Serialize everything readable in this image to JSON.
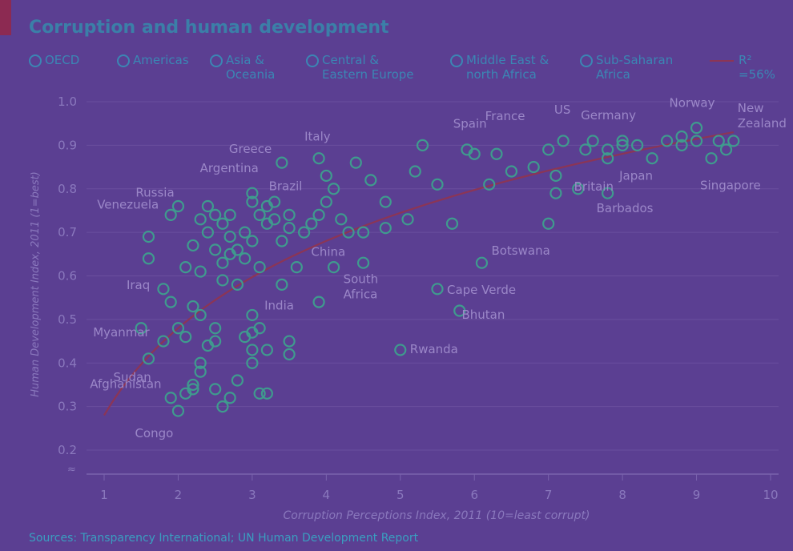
{
  "chart_data": {
    "type": "scatter",
    "title": "Corruption and human development",
    "xlabel": "Corruption Perceptions Index, 2011 (10=least corrupt)",
    "ylabel": "Human Development Index, 2011 (1=best)",
    "xlim": [
      1,
      10
    ],
    "ylim": [
      0.2,
      1.0
    ],
    "x_ticks": [
      "1",
      "2",
      "3",
      "4",
      "5",
      "6",
      "7",
      "8",
      "9",
      "10"
    ],
    "y_ticks": [
      "0.2",
      "0.3",
      "0.4",
      "0.5",
      "0.6",
      "0.7",
      "0.8",
      "0.9",
      "1.0"
    ],
    "grid": "horizontal",
    "legend_position": "top",
    "legend": [
      {
        "label": "OECD",
        "color": "#3b86b4"
      },
      {
        "label": "Americas",
        "color": "#3b86b4"
      },
      {
        "label": "Asia &\nOceania",
        "color": "#3b86b4"
      },
      {
        "label": "Central &\nEastern Europe",
        "color": "#3b86b4"
      },
      {
        "label": "Middle East &\nnorth Africa",
        "color": "#3b86b4"
      },
      {
        "label": "Sub-Saharan\nAfrica",
        "color": "#3b86b4"
      },
      {
        "label": "R² =56%",
        "color": "#8c3555"
      }
    ],
    "trend_line": {
      "label": "R² =56%",
      "from": [
        1.0,
        0.28
      ],
      "to": [
        9.5,
        0.93
      ],
      "color": "#8c3555"
    },
    "points": [
      {
        "x": 1.5,
        "y": 0.48
      },
      {
        "x": 1.6,
        "y": 0.41
      },
      {
        "x": 1.6,
        "y": 0.69
      },
      {
        "x": 1.6,
        "y": 0.64
      },
      {
        "x": 1.8,
        "y": 0.45
      },
      {
        "x": 1.8,
        "y": 0.57
      },
      {
        "x": 1.9,
        "y": 0.74
      },
      {
        "x": 1.9,
        "y": 0.54
      },
      {
        "x": 1.9,
        "y": 0.32
      },
      {
        "x": 2.0,
        "y": 0.29
      },
      {
        "x": 2.0,
        "y": 0.48
      },
      {
        "x": 2.0,
        "y": 0.76
      },
      {
        "x": 2.1,
        "y": 0.33
      },
      {
        "x": 2.1,
        "y": 0.46
      },
      {
        "x": 2.1,
        "y": 0.62
      },
      {
        "x": 2.2,
        "y": 0.34
      },
      {
        "x": 2.2,
        "y": 0.53
      },
      {
        "x": 2.2,
        "y": 0.67
      },
      {
        "x": 2.2,
        "y": 0.35
      },
      {
        "x": 2.3,
        "y": 0.4
      },
      {
        "x": 2.3,
        "y": 0.38
      },
      {
        "x": 2.3,
        "y": 0.51
      },
      {
        "x": 2.3,
        "y": 0.61
      },
      {
        "x": 2.3,
        "y": 0.73
      },
      {
        "x": 2.4,
        "y": 0.44
      },
      {
        "x": 2.4,
        "y": 0.7
      },
      {
        "x": 2.4,
        "y": 0.76
      },
      {
        "x": 2.5,
        "y": 0.34
      },
      {
        "x": 2.5,
        "y": 0.45
      },
      {
        "x": 2.5,
        "y": 0.48
      },
      {
        "x": 2.5,
        "y": 0.66
      },
      {
        "x": 2.5,
        "y": 0.74
      },
      {
        "x": 2.6,
        "y": 0.3
      },
      {
        "x": 2.6,
        "y": 0.59
      },
      {
        "x": 2.6,
        "y": 0.63
      },
      {
        "x": 2.6,
        "y": 0.72
      },
      {
        "x": 2.7,
        "y": 0.65
      },
      {
        "x": 2.7,
        "y": 0.69
      },
      {
        "x": 2.7,
        "y": 0.74
      },
      {
        "x": 2.7,
        "y": 0.32
      },
      {
        "x": 2.8,
        "y": 0.36
      },
      {
        "x": 2.8,
        "y": 0.58
      },
      {
        "x": 2.8,
        "y": 0.66
      },
      {
        "x": 2.9,
        "y": 0.46
      },
      {
        "x": 2.9,
        "y": 0.64
      },
      {
        "x": 2.9,
        "y": 0.7
      },
      {
        "x": 3.0,
        "y": 0.4
      },
      {
        "x": 3.0,
        "y": 0.43
      },
      {
        "x": 3.0,
        "y": 0.47
      },
      {
        "x": 3.0,
        "y": 0.51
      },
      {
        "x": 3.0,
        "y": 0.68
      },
      {
        "x": 3.0,
        "y": 0.77
      },
      {
        "x": 3.0,
        "y": 0.79
      },
      {
        "x": 3.1,
        "y": 0.33
      },
      {
        "x": 3.1,
        "y": 0.48
      },
      {
        "x": 3.1,
        "y": 0.62
      },
      {
        "x": 3.1,
        "y": 0.74
      },
      {
        "x": 3.2,
        "y": 0.33
      },
      {
        "x": 3.2,
        "y": 0.43
      },
      {
        "x": 3.2,
        "y": 0.72
      },
      {
        "x": 3.2,
        "y": 0.76
      },
      {
        "x": 3.3,
        "y": 0.73
      },
      {
        "x": 3.3,
        "y": 0.77
      },
      {
        "x": 3.4,
        "y": 0.58
      },
      {
        "x": 3.4,
        "y": 0.68
      },
      {
        "x": 3.4,
        "y": 0.86
      },
      {
        "x": 3.5,
        "y": 0.42
      },
      {
        "x": 3.5,
        "y": 0.45
      },
      {
        "x": 3.5,
        "y": 0.71
      },
      {
        "x": 3.5,
        "y": 0.74
      },
      {
        "x": 3.6,
        "y": 0.62
      },
      {
        "x": 3.7,
        "y": 0.7
      },
      {
        "x": 3.8,
        "y": 0.72
      },
      {
        "x": 3.9,
        "y": 0.54
      },
      {
        "x": 3.9,
        "y": 0.74
      },
      {
        "x": 3.9,
        "y": 0.87
      },
      {
        "x": 4.0,
        "y": 0.77
      },
      {
        "x": 4.0,
        "y": 0.83
      },
      {
        "x": 4.1,
        "y": 0.62
      },
      {
        "x": 4.1,
        "y": 0.8
      },
      {
        "x": 4.2,
        "y": 0.73
      },
      {
        "x": 4.3,
        "y": 0.7
      },
      {
        "x": 4.4,
        "y": 0.86
      },
      {
        "x": 4.5,
        "y": 0.63
      },
      {
        "x": 4.5,
        "y": 0.7
      },
      {
        "x": 4.6,
        "y": 0.82
      },
      {
        "x": 4.8,
        "y": 0.71
      },
      {
        "x": 4.8,
        "y": 0.77
      },
      {
        "x": 5.0,
        "y": 0.43
      },
      {
        "x": 5.1,
        "y": 0.73
      },
      {
        "x": 5.2,
        "y": 0.84
      },
      {
        "x": 5.3,
        "y": 0.9
      },
      {
        "x": 5.5,
        "y": 0.81
      },
      {
        "x": 5.5,
        "y": 0.57
      },
      {
        "x": 5.7,
        "y": 0.72
      },
      {
        "x": 5.8,
        "y": 0.52
      },
      {
        "x": 5.9,
        "y": 0.89
      },
      {
        "x": 6.0,
        "y": 0.88
      },
      {
        "x": 6.1,
        "y": 0.63
      },
      {
        "x": 6.2,
        "y": 0.81
      },
      {
        "x": 6.3,
        "y": 0.88
      },
      {
        "x": 6.5,
        "y": 0.84
      },
      {
        "x": 6.8,
        "y": 0.85
      },
      {
        "x": 7.0,
        "y": 0.72
      },
      {
        "x": 7.0,
        "y": 0.89
      },
      {
        "x": 7.1,
        "y": 0.79
      },
      {
        "x": 7.1,
        "y": 0.83
      },
      {
        "x": 7.2,
        "y": 0.91
      },
      {
        "x": 7.4,
        "y": 0.8
      },
      {
        "x": 7.5,
        "y": 0.89
      },
      {
        "x": 7.6,
        "y": 0.91
      },
      {
        "x": 7.8,
        "y": 0.79
      },
      {
        "x": 7.8,
        "y": 0.87
      },
      {
        "x": 7.8,
        "y": 0.89
      },
      {
        "x": 8.0,
        "y": 0.9
      },
      {
        "x": 8.0,
        "y": 0.91
      },
      {
        "x": 8.2,
        "y": 0.9
      },
      {
        "x": 8.4,
        "y": 0.87
      },
      {
        "x": 8.6,
        "y": 0.91
      },
      {
        "x": 8.8,
        "y": 0.9
      },
      {
        "x": 8.8,
        "y": 0.92
      },
      {
        "x": 9.0,
        "y": 0.91
      },
      {
        "x": 9.0,
        "y": 0.94
      },
      {
        "x": 9.2,
        "y": 0.87
      },
      {
        "x": 9.3,
        "y": 0.91
      },
      {
        "x": 9.4,
        "y": 0.89
      },
      {
        "x": 9.5,
        "y": 0.91
      }
    ],
    "annotations": [
      {
        "label": "Russia",
        "x": 2.4,
        "y": 0.76
      },
      {
        "label": "Argentina",
        "x": 2.9,
        "y": 0.79
      },
      {
        "label": "Greece",
        "x": 3.4,
        "y": 0.86
      },
      {
        "label": "Italy",
        "x": 3.9,
        "y": 0.87
      },
      {
        "label": "Brazil",
        "x": 3.7,
        "y": 0.72
      },
      {
        "label": "Venezuela",
        "x": 1.9,
        "y": 0.74
      },
      {
        "label": "China",
        "x": 3.6,
        "y": 0.69
      },
      {
        "label": "Iraq",
        "x": 1.8,
        "y": 0.57
      },
      {
        "label": "India",
        "x": 3.1,
        "y": 0.55
      },
      {
        "label": "South\nAfrica",
        "x": 4.1,
        "y": 0.62
      },
      {
        "label": "Myanmar",
        "x": 1.5,
        "y": 0.48
      },
      {
        "label": "Sudan",
        "x": 1.6,
        "y": 0.41
      },
      {
        "label": "Afghanistan",
        "x": 1.5,
        "y": 0.4
      },
      {
        "label": "Congo",
        "x": 2.0,
        "y": 0.29
      },
      {
        "label": "Rwanda",
        "x": 5.0,
        "y": 0.43
      },
      {
        "label": "Botswana",
        "x": 6.1,
        "y": 0.63
      },
      {
        "label": "Cape Verde",
        "x": 5.5,
        "y": 0.57
      },
      {
        "label": "Bhutan",
        "x": 5.7,
        "y": 0.52
      },
      {
        "label": "Spain",
        "x": 6.2,
        "y": 0.88
      },
      {
        "label": "France",
        "x": 7.0,
        "y": 0.89
      },
      {
        "label": "US",
        "x": 7.1,
        "y": 0.91
      },
      {
        "label": "Germany",
        "x": 8.0,
        "y": 0.91
      },
      {
        "label": "Britain",
        "x": 7.8,
        "y": 0.86
      },
      {
        "label": "Japan",
        "x": 8.0,
        "y": 0.9
      },
      {
        "label": "Barbados",
        "x": 7.8,
        "y": 0.79
      },
      {
        "label": "Norway",
        "x": 9.0,
        "y": 0.94
      },
      {
        "label": "New\nZealand",
        "x": 9.5,
        "y": 0.91
      },
      {
        "label": "Singapore",
        "x": 9.2,
        "y": 0.87
      }
    ]
  },
  "page": {
    "title": "Corruption and human development",
    "source": "Sources: Transparency International; UN Human Development Report"
  }
}
